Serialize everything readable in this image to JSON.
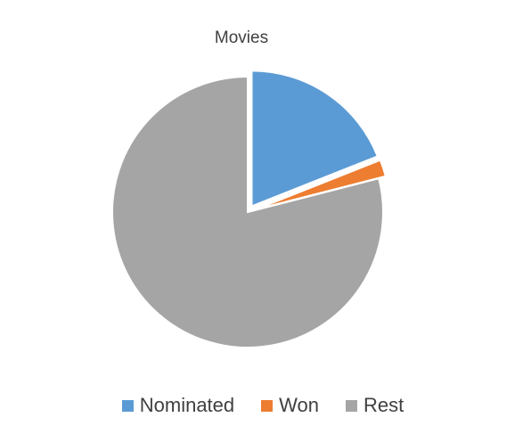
{
  "chart_data": {
    "type": "pie",
    "title": "Movies",
    "series": [
      {
        "name": "Movies",
        "categories": [
          "Nominated",
          "Won",
          "Rest"
        ],
        "values": [
          19,
          2,
          79
        ],
        "exploded": [
          true,
          true,
          false
        ]
      }
    ],
    "colors": [
      "#5b9bd5",
      "#ed7d31",
      "#a5a5a5"
    ],
    "legend_position": "bottom"
  }
}
